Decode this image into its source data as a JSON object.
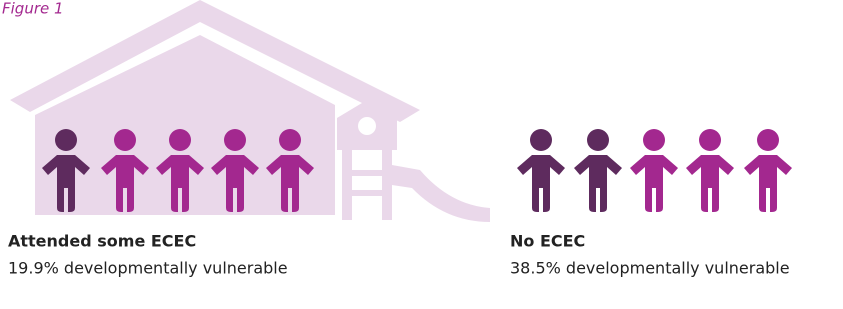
{
  "figure_label": "Figure 1",
  "groups": [
    {
      "title": "Attended some ECEC",
      "description": "19.9% developmentally vulnerable"
    },
    {
      "title": "No ECEC",
      "description": "38.5% developmentally vulnerable"
    }
  ]
}
